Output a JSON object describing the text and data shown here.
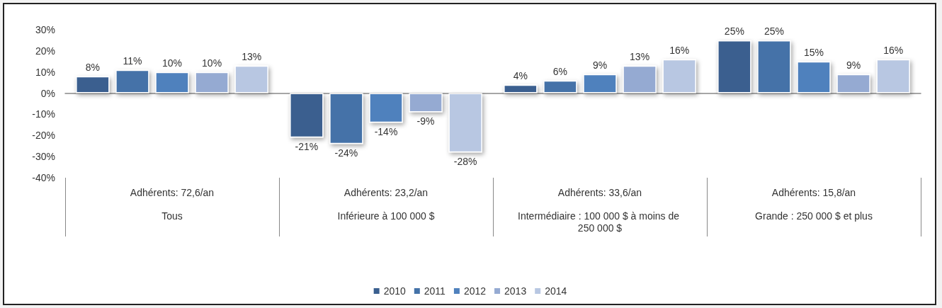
{
  "chart_data": {
    "type": "bar",
    "categories": [
      "Tous",
      "Inférieure à 100 000 $",
      "Intermédiaire : 100 000 $ à moins de 250 000 $",
      "Grande : 250 000 $ et plus"
    ],
    "annotations": [
      "Adhérents: 72,6/an",
      "Adhérents: 23,2/an",
      "Adhérents: 33,6/an",
      "Adhérents: 15,8/an"
    ],
    "series": [
      {
        "name": "2010",
        "color": "#3a5f8f",
        "values": [
          8,
          -21,
          4,
          25
        ],
        "value_labels": [
          "8%",
          "-21%",
          "4%",
          "25%"
        ]
      },
      {
        "name": "2011",
        "color": "#4472a8",
        "values": [
          11,
          -24,
          6,
          25
        ],
        "value_labels": [
          "11%",
          "-24%",
          "6%",
          "25%"
        ]
      },
      {
        "name": "2012",
        "color": "#4f81bd",
        "values": [
          10,
          -14,
          9,
          15
        ],
        "value_labels": [
          "10%",
          "-14%",
          "9%",
          "15%"
        ]
      },
      {
        "name": "2013",
        "color": "#95aad2",
        "values": [
          10,
          -9,
          13,
          9
        ],
        "value_labels": [
          "10%",
          "-9%",
          "13%",
          "9%"
        ]
      },
      {
        "name": "2014",
        "color": "#b8c7e2",
        "values": [
          13,
          -28,
          16,
          16
        ],
        "value_labels": [
          "13%",
          "-28%",
          "16%",
          "16%"
        ]
      }
    ],
    "ylim": [
      -40,
      30
    ],
    "yticks": [
      {
        "value": -40,
        "label": "-40%"
      },
      {
        "value": -30,
        "label": "-30%"
      },
      {
        "value": -20,
        "label": "-20%"
      },
      {
        "value": -10,
        "label": "-10%"
      },
      {
        "value": 0,
        "label": "0%"
      },
      {
        "value": 10,
        "label": "10%"
      },
      {
        "value": 20,
        "label": "20%"
      },
      {
        "value": 30,
        "label": "30%"
      }
    ],
    "legend": "bottom"
  }
}
